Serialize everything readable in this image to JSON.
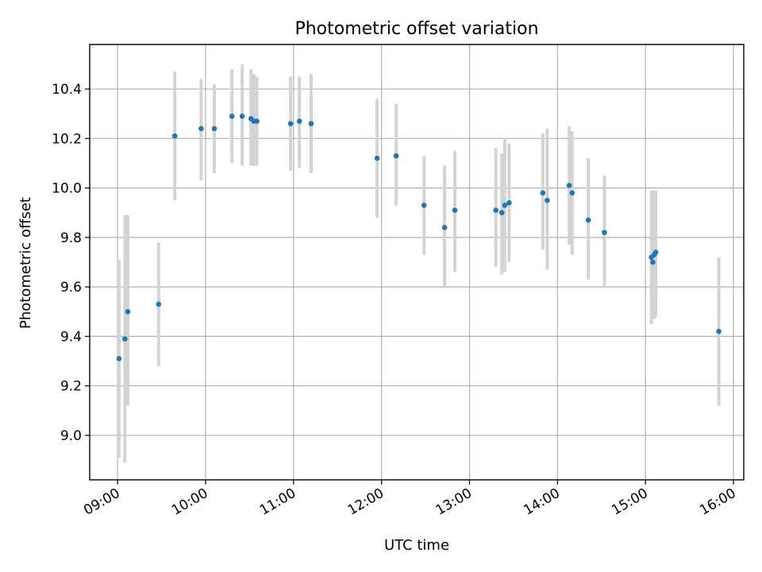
{
  "chart_data": {
    "type": "scatter",
    "title": "Photometric offset variation",
    "xlabel": "UTC time",
    "ylabel": "Photometric offset",
    "x_ticks": [
      "09:00",
      "10:00",
      "11:00",
      "12:00",
      "13:00",
      "14:00",
      "15:00",
      "16:00"
    ],
    "y_ticks": [
      "9.0",
      "9.2",
      "9.4",
      "9.6",
      "9.8",
      "10.0",
      "10.2",
      "10.4"
    ],
    "xlim": [
      "08:41",
      "16:07"
    ],
    "ylim": [
      8.82,
      10.58
    ],
    "grid": true,
    "colors": {
      "point": "#1f77b4",
      "errorbar": "#d3d3d3",
      "grid": "#b0b0b0"
    },
    "points": [
      {
        "x": "09:01",
        "y": 9.31,
        "low": 8.91,
        "high": 9.71
      },
      {
        "x": "09:05",
        "y": 9.39,
        "low": 8.89,
        "high": 9.89
      },
      {
        "x": "09:07",
        "y": 9.5,
        "low": 9.12,
        "high": 9.89
      },
      {
        "x": "09:28",
        "y": 9.53,
        "low": 9.28,
        "high": 9.78
      },
      {
        "x": "09:39",
        "y": 10.21,
        "low": 9.95,
        "high": 10.47
      },
      {
        "x": "09:57",
        "y": 10.24,
        "low": 10.03,
        "high": 10.44
      },
      {
        "x": "10:06",
        "y": 10.24,
        "low": 10.06,
        "high": 10.42
      },
      {
        "x": "10:18",
        "y": 10.29,
        "low": 10.1,
        "high": 10.48
      },
      {
        "x": "10:25",
        "y": 10.29,
        "low": 10.09,
        "high": 10.5
      },
      {
        "x": "10:31",
        "y": 10.28,
        "low": 10.09,
        "high": 10.48
      },
      {
        "x": "10:33",
        "y": 10.27,
        "low": 10.09,
        "high": 10.46
      },
      {
        "x": "10:35",
        "y": 10.27,
        "low": 10.09,
        "high": 10.45
      },
      {
        "x": "10:58",
        "y": 10.26,
        "low": 10.07,
        "high": 10.45
      },
      {
        "x": "11:04",
        "y": 10.27,
        "low": 10.08,
        "high": 10.45
      },
      {
        "x": "11:12",
        "y": 10.26,
        "low": 10.06,
        "high": 10.46
      },
      {
        "x": "11:57",
        "y": 10.12,
        "low": 9.88,
        "high": 10.36
      },
      {
        "x": "12:10",
        "y": 10.13,
        "low": 9.93,
        "high": 10.34
      },
      {
        "x": "12:29",
        "y": 9.93,
        "low": 9.73,
        "high": 10.13
      },
      {
        "x": "12:43",
        "y": 9.84,
        "low": 9.6,
        "high": 10.09
      },
      {
        "x": "12:50",
        "y": 9.91,
        "low": 9.66,
        "high": 10.15
      },
      {
        "x": "13:18",
        "y": 9.91,
        "low": 9.68,
        "high": 10.16
      },
      {
        "x": "13:22",
        "y": 9.9,
        "low": 9.65,
        "high": 10.14
      },
      {
        "x": "13:24",
        "y": 9.93,
        "low": 9.66,
        "high": 10.2
      },
      {
        "x": "13:27",
        "y": 9.94,
        "low": 9.7,
        "high": 10.18
      },
      {
        "x": "13:50",
        "y": 9.98,
        "low": 9.75,
        "high": 10.22
      },
      {
        "x": "13:53",
        "y": 9.95,
        "low": 9.67,
        "high": 10.24
      },
      {
        "x": "14:08",
        "y": 10.01,
        "low": 9.77,
        "high": 10.25
      },
      {
        "x": "14:10",
        "y": 9.98,
        "low": 9.73,
        "high": 10.23
      },
      {
        "x": "14:21",
        "y": 9.87,
        "low": 9.63,
        "high": 10.12
      },
      {
        "x": "14:32",
        "y": 9.82,
        "low": 9.6,
        "high": 10.05
      },
      {
        "x": "15:04",
        "y": 9.72,
        "low": 9.45,
        "high": 9.99
      },
      {
        "x": "15:05",
        "y": 9.7,
        "low": 9.47,
        "high": 9.97
      },
      {
        "x": "15:06",
        "y": 9.73,
        "low": 9.47,
        "high": 9.99
      },
      {
        "x": "15:07",
        "y": 9.74,
        "low": 9.48,
        "high": 9.99
      },
      {
        "x": "15:50",
        "y": 9.42,
        "low": 9.12,
        "high": 9.72
      }
    ]
  }
}
